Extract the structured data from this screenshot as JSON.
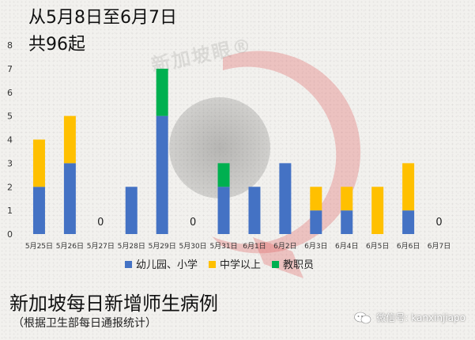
{
  "header": {
    "line1": "从5月8日至6月7日",
    "line2": "共96起"
  },
  "watermark": {
    "text": "新加坡眼®"
  },
  "footer": {
    "title": "新加坡每日新增师生病例",
    "subtitle": "（根据卫生部每日通报统计）"
  },
  "wechat": {
    "label": "微信号: kanxinjiapo",
    "icon": "wechat-icon"
  },
  "colors": {
    "primary": "#4472c4",
    "secondary": "#ffc000",
    "staff": "#00b050",
    "logo": "#e06060"
  },
  "chart_data": {
    "type": "bar",
    "stacked": true,
    "categories": [
      "5月25日",
      "5月26日",
      "5月27日",
      "5月28日",
      "5月29日",
      "5月30日",
      "5月31日",
      "6月1日",
      "6月2日",
      "6月3日",
      "6月4日",
      "6月5日",
      "6月6日",
      "6月7日"
    ],
    "series": [
      {
        "name": "幼儿园、小学",
        "color": "#4472c4",
        "values": [
          2,
          3,
          0,
          2,
          5,
          0,
          2,
          2,
          3,
          1,
          1,
          0,
          1,
          0
        ]
      },
      {
        "name": "中学以上",
        "color": "#ffc000",
        "values": [
          2,
          2,
          0,
          0,
          0,
          0,
          0,
          0,
          0,
          1,
          1,
          2,
          2,
          0
        ]
      },
      {
        "name": "教职员",
        "color": "#00b050",
        "values": [
          0,
          0,
          0,
          0,
          2,
          0,
          1,
          0,
          0,
          0,
          0,
          0,
          0,
          0
        ]
      }
    ],
    "zero_labels": [
      "0",
      "0",
      "0"
    ],
    "ylim": [
      0,
      8
    ],
    "yticks": [
      "0",
      "1",
      "2",
      "3",
      "4",
      "5",
      "6",
      "7",
      "8"
    ],
    "grid": false,
    "legend_position": "bottom"
  }
}
